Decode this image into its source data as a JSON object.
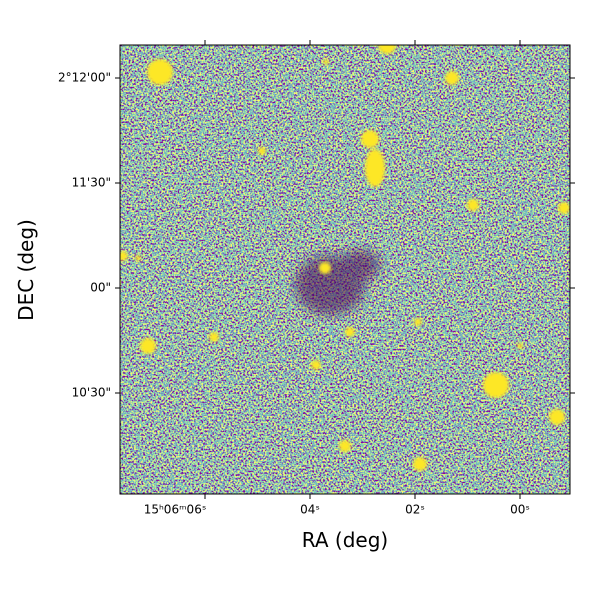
{
  "x_axis": {
    "label": "RA (deg)",
    "ticks": [
      "15ʰ06ᵐ06ˢ",
      "04ˢ",
      "02ˢ",
      "00ˢ"
    ]
  },
  "y_axis": {
    "label": "DEC (deg)",
    "ticks": [
      "2°12'00\"",
      "11'30\"",
      "00\"",
      "10'30\""
    ]
  }
}
